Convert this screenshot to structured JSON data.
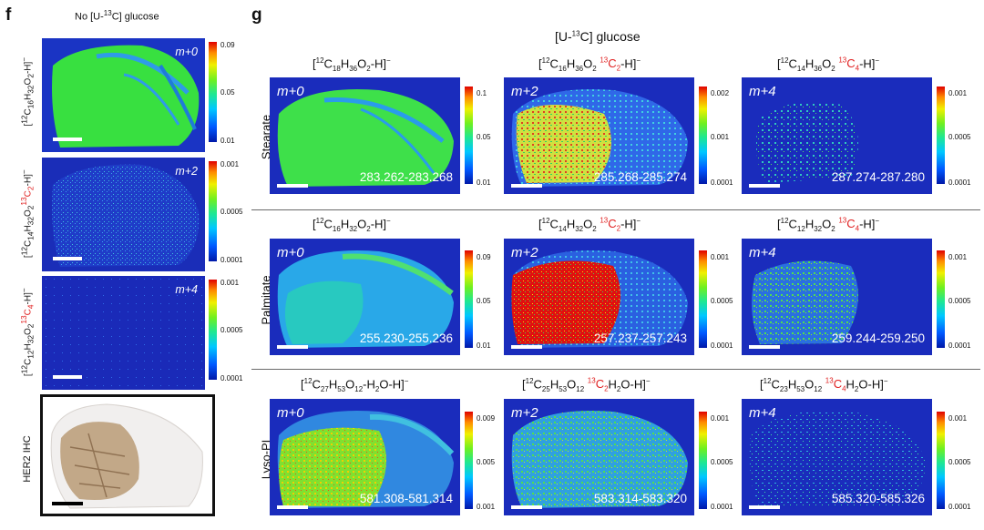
{
  "panel_f": {
    "label": "f",
    "title": "No [U-13C] glucose",
    "rows": [
      {
        "ylabel": "[12C16H32O2-H]−",
        "isotopologue": "m+0",
        "colorbar": [
          "0.09",
          "0.05",
          "0.01"
        ],
        "intensity_level": "high"
      },
      {
        "ylabel": "[12C14H32O2 13C2-H]−",
        "isotopologue": "m+2",
        "colorbar": [
          "0.001",
          "0.0005",
          "0.0001"
        ],
        "intensity_level": "low"
      },
      {
        "ylabel": "[12C12H32O2 13C4-H]−",
        "isotopologue": "m+4",
        "colorbar": [
          "0.001",
          "0.0005",
          "0.0001"
        ],
        "intensity_level": "very-low"
      }
    ],
    "ihc_label": "HER2 IHC"
  },
  "panel_g": {
    "label": "g",
    "title": "[U-13C] glucose",
    "rows": [
      {
        "name": "Stearate",
        "cells": [
          {
            "isotopologue": "m+0",
            "mz": "283.262-283.268",
            "colorbar": [
              "0.1",
              "0.05",
              "0.01"
            ]
          },
          {
            "isotopologue": "m+2",
            "mz": "285.268-285.274",
            "colorbar": [
              "0.002",
              "0.001",
              "0.0001"
            ]
          },
          {
            "isotopologue": "m+4",
            "mz": "287.274-287.280",
            "colorbar": [
              "0.001",
              "0.0005",
              "0.0001"
            ]
          }
        ]
      },
      {
        "name": "Palmitate",
        "cells": [
          {
            "isotopologue": "m+0",
            "mz": "255.230-255.236",
            "colorbar": [
              "0.09",
              "0.05",
              "0.01"
            ]
          },
          {
            "isotopologue": "m+2",
            "mz": "257.237-257.243",
            "colorbar": [
              "0.001",
              "0.0005",
              "0.0001"
            ]
          },
          {
            "isotopologue": "m+4",
            "mz": "259.244-259.250",
            "colorbar": [
              "0.001",
              "0.0005",
              "0.0001"
            ]
          }
        ]
      },
      {
        "name": "Lyso-PI",
        "cells": [
          {
            "isotopologue": "m+0",
            "mz": "581.308-581.314",
            "colorbar": [
              "0.009",
              "0.005",
              "0.001"
            ]
          },
          {
            "isotopologue": "m+2",
            "mz": "583.314-583.320",
            "colorbar": [
              "0.001",
              "0.0005",
              "0.0001"
            ]
          },
          {
            "isotopologue": "m+4",
            "mz": "585.320-585.326",
            "colorbar": [
              "0.001",
              "0.0005",
              "0.0001"
            ]
          }
        ]
      }
    ]
  },
  "colors": {
    "background_map": "#1020b0",
    "label_red": "#e02020",
    "ihc_stain": "#b89a78"
  }
}
